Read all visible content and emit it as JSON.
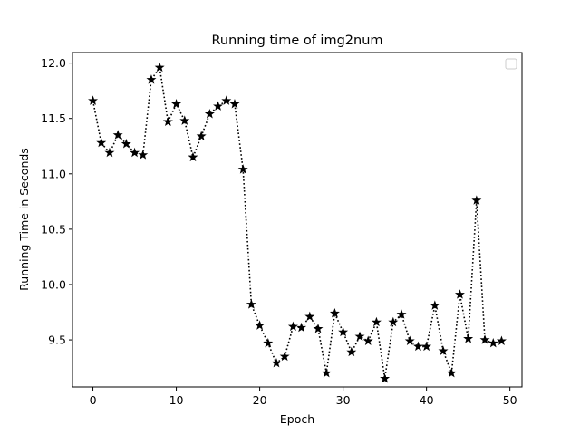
{
  "chart_data": {
    "type": "line",
    "title": "Running time of img2num",
    "xlabel": "Epoch",
    "ylabel": "Running Time in Seconds",
    "xlim": [
      -2.45,
      51.45
    ],
    "ylim": [
      9.075,
      12.095
    ],
    "xticks": [
      0,
      10,
      20,
      30,
      40,
      50
    ],
    "yticks": [
      9.5,
      10.0,
      10.5,
      11.0,
      11.5,
      12.0
    ],
    "xtick_labels": [
      "0",
      "10",
      "20",
      "30",
      "40",
      "50"
    ],
    "ytick_labels": [
      "9.5",
      "10.0",
      "10.5",
      "11.0",
      "11.5",
      "12.0"
    ],
    "grid": false,
    "legend": "top-right (empty)",
    "series": [
      {
        "line_style": "dotted",
        "marker": "star",
        "color": "#000000",
        "x": [
          0,
          1,
          2,
          3,
          4,
          5,
          6,
          7,
          8,
          9,
          10,
          11,
          12,
          13,
          14,
          15,
          16,
          17,
          18,
          19,
          20,
          21,
          22,
          23,
          24,
          25,
          26,
          27,
          28,
          29,
          30,
          31,
          32,
          33,
          34,
          35,
          36,
          37,
          38,
          39,
          40,
          41,
          42,
          43,
          44,
          45,
          46,
          47,
          48,
          49
        ],
        "y": [
          11.66,
          11.28,
          11.19,
          11.35,
          11.27,
          11.19,
          11.17,
          11.85,
          11.96,
          11.47,
          11.63,
          11.48,
          11.15,
          11.34,
          11.54,
          11.61,
          11.66,
          11.63,
          11.04,
          9.82,
          9.63,
          9.47,
          9.29,
          9.35,
          9.62,
          9.61,
          9.71,
          9.6,
          9.2,
          9.74,
          9.57,
          9.39,
          9.53,
          9.49,
          9.66,
          9.15,
          9.66,
          9.73,
          9.49,
          9.44,
          9.44,
          9.81,
          9.4,
          9.2,
          9.91,
          9.51,
          10.76,
          9.5,
          9.47,
          9.49
        ]
      }
    ]
  }
}
